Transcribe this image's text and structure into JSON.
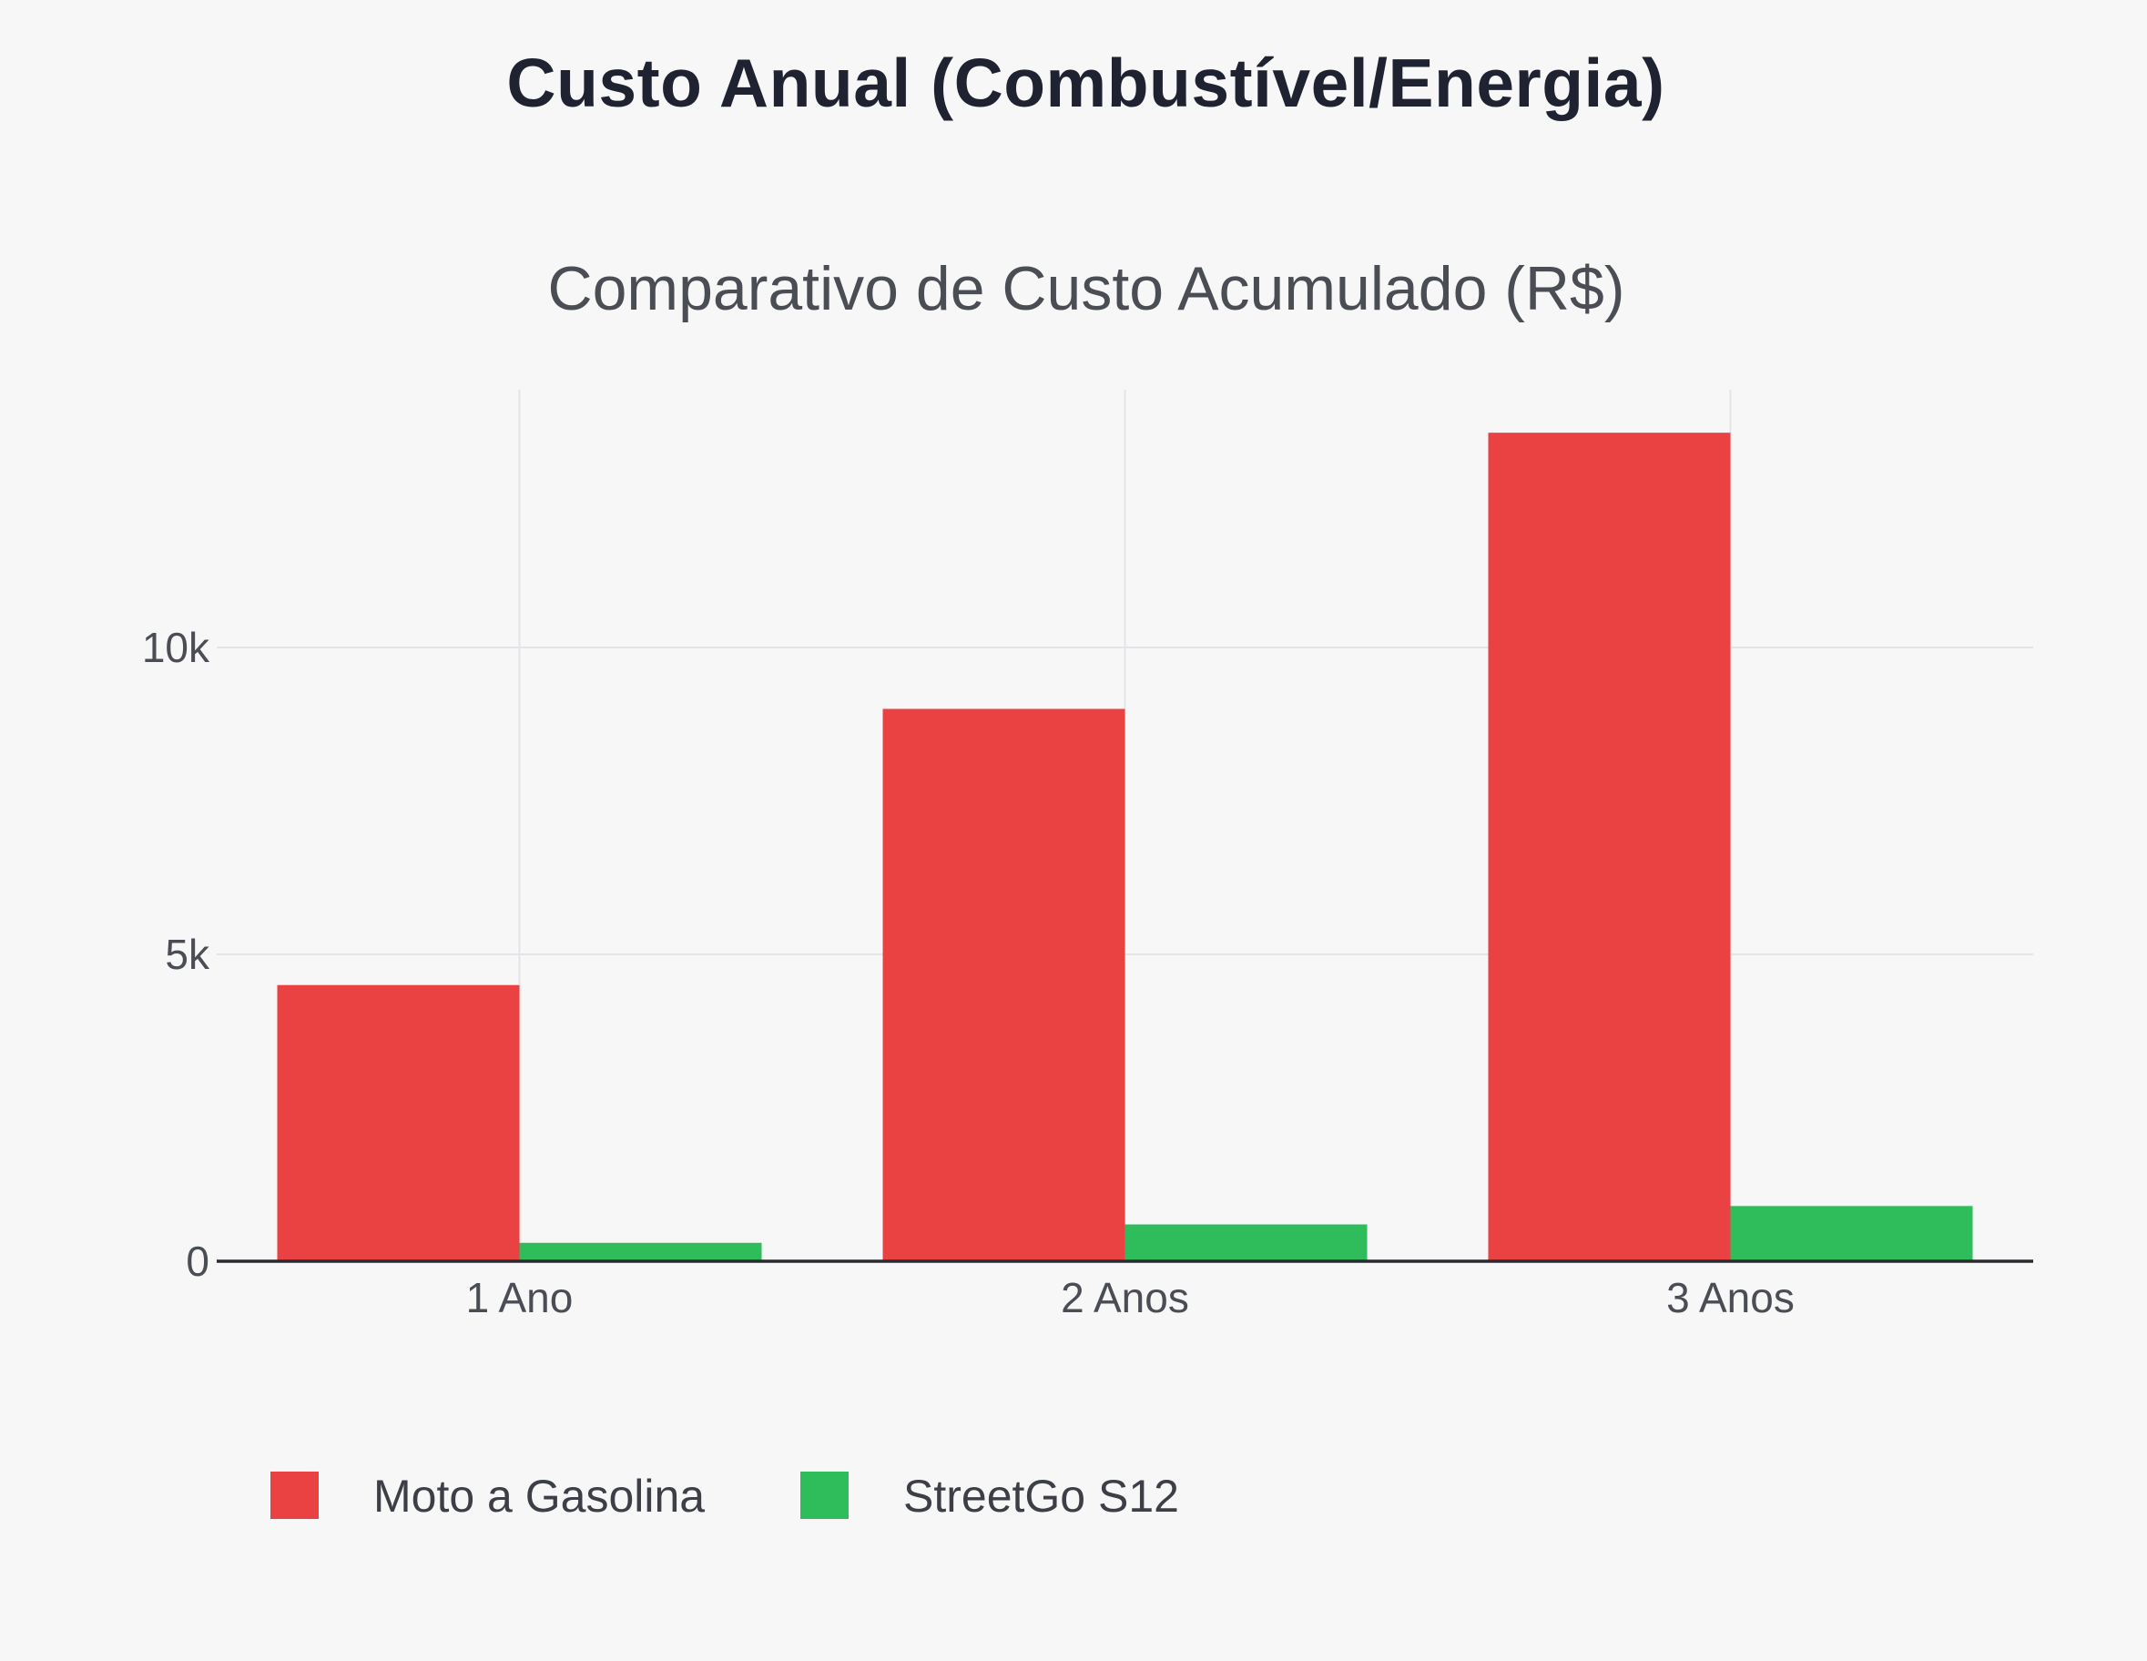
{
  "header": {
    "title": "Custo Anual (Combustível/Energia)"
  },
  "chart_data": {
    "type": "bar",
    "title": "Comparativo de Custo Acumulado (R$)",
    "xlabel": "",
    "ylabel": "",
    "categories": [
      "1 Ano",
      "2 Anos",
      "3 Anos"
    ],
    "series": [
      {
        "name": "Moto a Gasolina",
        "color": "#ea4242",
        "values": [
          4500,
          9000,
          13500
        ]
      },
      {
        "name": "StreetGo S12",
        "color": "#2fbd5c",
        "values": [
          300,
          600,
          900
        ]
      }
    ],
    "ylim": [
      0,
      14200
    ],
    "yticks": [
      0,
      5000,
      10000
    ],
    "ytick_labels": [
      "0",
      "5k",
      "10k"
    ],
    "grid": true,
    "legend_position": "bottom-left"
  }
}
